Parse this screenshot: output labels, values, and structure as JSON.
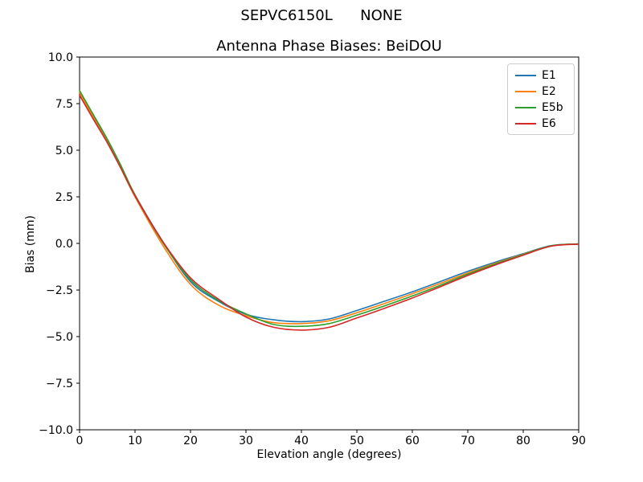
{
  "figure": {
    "suptitle": "SEPVC6150L      NONE",
    "background": "#ffffff"
  },
  "chart_data": {
    "type": "line",
    "title": "Antenna Phase Biases: BeiDOU",
    "xlabel": "Elevation angle (degrees)",
    "ylabel": "Bias (mm)",
    "xlim": [
      0,
      90
    ],
    "ylim": [
      -10,
      10
    ],
    "grid": false,
    "legend_position": "upper right",
    "legend_entries": [
      "E1",
      "E2",
      "E5b",
      "E6"
    ],
    "xtick_values": [
      0,
      10,
      20,
      30,
      40,
      50,
      60,
      70,
      80,
      90
    ],
    "xtick_labels": [
      "0",
      "10",
      "20",
      "30",
      "40",
      "50",
      "60",
      "70",
      "80",
      "90"
    ],
    "ytick_values": [
      10,
      7.5,
      5,
      2.5,
      0,
      -2.5,
      -5,
      -7.5,
      -10
    ],
    "ytick_labels": [
      "10.0",
      "7.5",
      "5.0",
      "2.5",
      "0.0",
      "−2.5",
      "−5.0",
      "−7.5",
      "−10.0"
    ],
    "x": [
      0,
      2.5,
      5,
      7.5,
      10,
      15,
      20,
      25,
      30,
      35,
      40,
      45,
      50,
      55,
      60,
      65,
      70,
      75,
      80,
      85,
      90
    ],
    "series": [
      {
        "name": "E1",
        "color": "#1f77b4",
        "values": [
          8.1,
          6.8,
          5.5,
          4.1,
          2.6,
          0.1,
          -2.05,
          -3.1,
          -3.8,
          -4.1,
          -4.2,
          -4.05,
          -3.6,
          -3.1,
          -2.6,
          -2.05,
          -1.5,
          -1.0,
          -0.55,
          -0.12,
          -0.02
        ]
      },
      {
        "name": "E2",
        "color": "#ff7f0e",
        "values": [
          8.1,
          6.75,
          5.45,
          4.0,
          2.5,
          -0.1,
          -2.2,
          -3.3,
          -3.88,
          -4.25,
          -4.3,
          -4.15,
          -3.72,
          -3.22,
          -2.7,
          -2.15,
          -1.58,
          -1.06,
          -0.58,
          -0.14,
          -0.03
        ]
      },
      {
        "name": "E5b",
        "color": "#2ca02c",
        "values": [
          8.2,
          6.9,
          5.6,
          4.15,
          2.6,
          0.05,
          -1.95,
          -3.05,
          -3.78,
          -4.35,
          -4.45,
          -4.3,
          -3.85,
          -3.35,
          -2.82,
          -2.25,
          -1.65,
          -1.1,
          -0.6,
          -0.13,
          -0.03
        ]
      },
      {
        "name": "E6",
        "color": "#d62728",
        "values": [
          7.95,
          6.65,
          5.4,
          4.0,
          2.55,
          0.1,
          -1.85,
          -2.98,
          -3.95,
          -4.5,
          -4.65,
          -4.5,
          -4.0,
          -3.48,
          -2.93,
          -2.33,
          -1.72,
          -1.15,
          -0.63,
          -0.15,
          -0.04
        ]
      }
    ]
  },
  "style": {
    "axis_color": "#000000",
    "legend_border_color": "#cccccc"
  }
}
